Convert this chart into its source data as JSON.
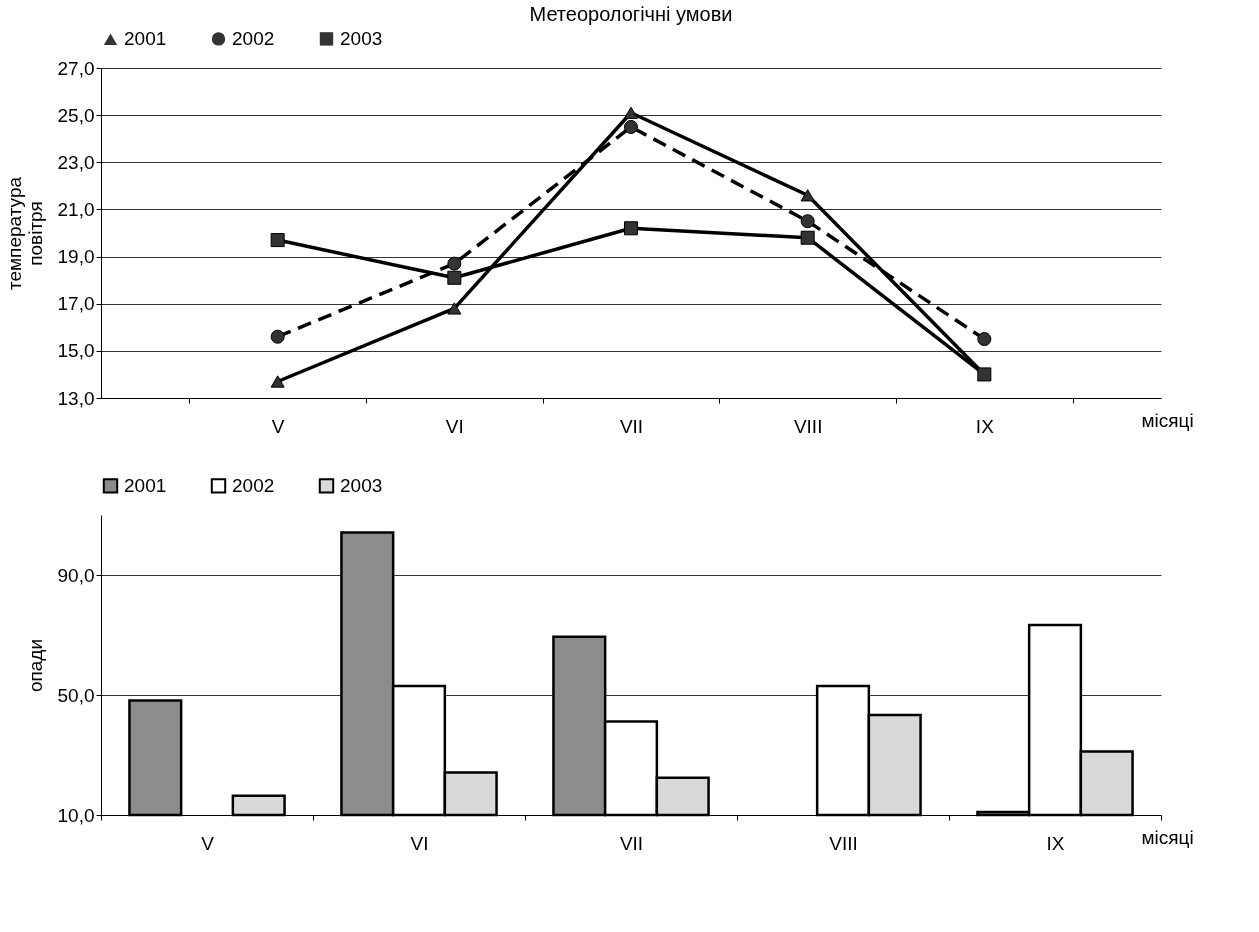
{
  "chart_data": [
    {
      "type": "line",
      "title": "Метеорологічні умови",
      "ylabel": "температура повітря",
      "xlabel": "місяці",
      "categories": [
        "V",
        "VI",
        "VII",
        "VIII",
        "IX"
      ],
      "series": [
        {
          "name": "2001",
          "color": "#000000",
          "marker": "triangle",
          "line_style": "solid",
          "values": [
            13.7,
            16.8,
            25.1,
            21.6,
            14.0
          ]
        },
        {
          "name": "2002",
          "color": "#000000",
          "marker": "circle",
          "line_style": "dashed",
          "values": [
            15.6,
            18.7,
            24.5,
            20.5,
            15.5
          ]
        },
        {
          "name": "2003",
          "color": "#000000",
          "marker": "square",
          "line_style": "solid",
          "values": [
            19.7,
            18.1,
            20.2,
            19.8,
            14.0
          ]
        }
      ],
      "ylim": [
        13,
        27
      ],
      "yticks": [
        {
          "value": 13,
          "label": "13,0"
        },
        {
          "value": 15,
          "label": "15,0"
        },
        {
          "value": 17,
          "label": "17,0"
        },
        {
          "value": 19,
          "label": "19,0"
        },
        {
          "value": 21,
          "label": "21,0"
        },
        {
          "value": 23,
          "label": "23,0"
        },
        {
          "value": 25,
          "label": "25,0"
        },
        {
          "value": 27,
          "label": "27,0"
        }
      ],
      "grid": "y",
      "legend": "top"
    },
    {
      "type": "bar",
      "ylabel": "опади",
      "xlabel": "місяці",
      "categories": [
        "V",
        "VI",
        "VII",
        "VIII",
        "IX"
      ],
      "series": [
        {
          "name": "2001",
          "color": "#8c8c8c",
          "values": [
            48.2,
            104.2,
            69.4,
            null,
            11.0
          ]
        },
        {
          "name": "2002",
          "color": "#ffffff",
          "values": [
            null,
            53.0,
            41.2,
            53.0,
            73.3
          ]
        },
        {
          "name": "2003",
          "color": "#d9d9d9",
          "values": [
            16.4,
            24.2,
            22.4,
            43.3,
            31.2
          ]
        }
      ],
      "ylim": [
        10,
        110
      ],
      "yticks": [
        {
          "value": 10,
          "label": "10,0"
        },
        {
          "value": 50,
          "label": "50,0"
        },
        {
          "value": 90,
          "label": "90,0"
        }
      ],
      "grid": "y",
      "legend": "top"
    }
  ]
}
